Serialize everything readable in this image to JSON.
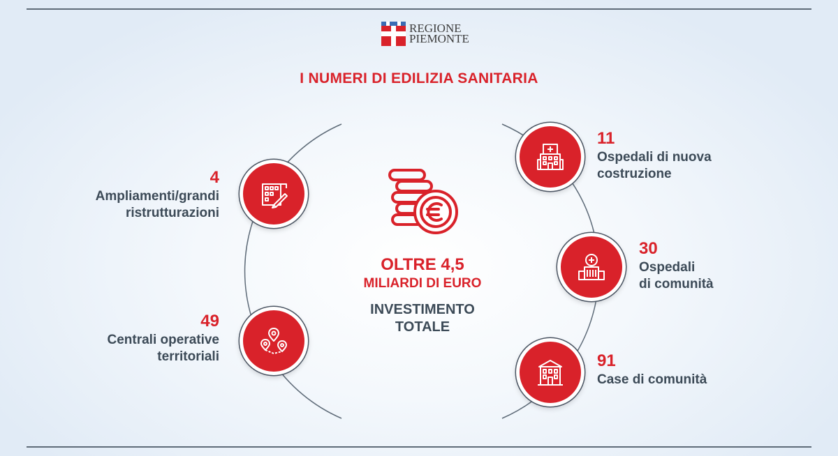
{
  "logo": {
    "line1": "REGIONE",
    "line2": "PIEMONTE"
  },
  "title": "I NUMERI DI EDILIZIA SANITARIA",
  "center": {
    "amount": "OLTRE 4,5",
    "unit": "MILIARDI DI EURO",
    "caption_line1": "INVESTIMENTO",
    "caption_line2": "TOTALE",
    "icon": "euro-coins-icon"
  },
  "stats": [
    {
      "number": "4",
      "line1": "Ampliamenti/grandi",
      "line2": "ristrutturazioni",
      "icon": "building-tools-icon"
    },
    {
      "number": "49",
      "line1": "Centrali operative",
      "line2": "territoriali",
      "icon": "map-pins-icon"
    },
    {
      "number": "11",
      "line1": "Ospedali di nuova",
      "line2": "costruzione",
      "icon": "hospital-building-icon"
    },
    {
      "number": "30",
      "line1": "Ospedali",
      "line2": "di comunità",
      "icon": "community-hospital-icon"
    },
    {
      "number": "91",
      "line1": "Case di comunità",
      "line2": "",
      "icon": "community-house-icon"
    }
  ],
  "colors": {
    "accent": "#d9222a",
    "text": "#3c4a57",
    "line": "#5e6b78"
  }
}
